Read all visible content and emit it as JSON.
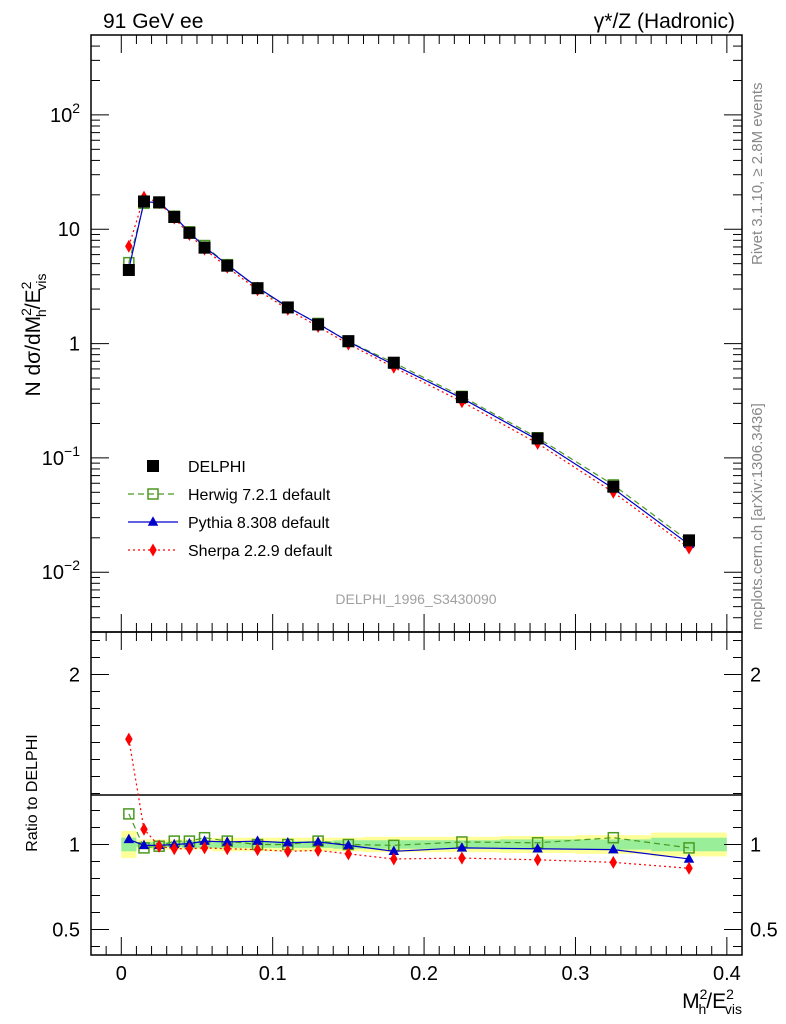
{
  "header": {
    "left": "91 GeV ee",
    "right": "γ*/Z (Hadronic)"
  },
  "side_text": {
    "rivet": "Rivet 3.1.10, ≥ 2.8M events",
    "mcplots": "mcplots.cern.ch [arXiv:1306.3436]"
  },
  "analysis_id": "DELPHI_1996_S3430090",
  "chart_data": [
    {
      "type": "scatter",
      "ylabel": "N dσ/dM²h/E²vis",
      "ylabel_parts": {
        "main": "N dσ/dM",
        "sup": "2",
        "sub": "h",
        "slash": "/E",
        "sup2": "2",
        "sub2": "vis"
      },
      "yscale": "log",
      "ylim": [
        0.003,
        500
      ],
      "xlim": [
        -0.02,
        0.41
      ],
      "y_ticks": [
        {
          "v": 0.01,
          "base": "10",
          "exp": "−2"
        },
        {
          "v": 0.1,
          "base": "10",
          "exp": "−1"
        },
        {
          "v": 1,
          "base": "1",
          "exp": ""
        },
        {
          "v": 10,
          "base": "10",
          "exp": ""
        },
        {
          "v": 100,
          "base": "10",
          "exp": "2"
        }
      ],
      "legend_position": "middle-left",
      "x": [
        0.005,
        0.015,
        0.025,
        0.035,
        0.045,
        0.055,
        0.07,
        0.09,
        0.11,
        0.13,
        0.15,
        0.18,
        0.225,
        0.275,
        0.325,
        0.375
      ],
      "series": [
        {
          "name": "DELPHI",
          "color": "#000000",
          "marker": "square-filled",
          "line": "none",
          "values": [
            4.4,
            17.5,
            17.2,
            12.8,
            9.3,
            6.9,
            4.8,
            3.05,
            2.07,
            1.47,
            1.05,
            0.68,
            0.34,
            0.148,
            0.056,
            0.019
          ]
        },
        {
          "name": "Herwig 7.2.1 default",
          "color": "#4a9a1f",
          "marker": "square-open",
          "line": "dashed",
          "values": [
            5.1,
            16.9,
            17.0,
            13.0,
            9.5,
            7.2,
            4.9,
            3.05,
            2.07,
            1.5,
            1.04,
            0.68,
            0.345,
            0.15,
            0.058,
            0.0186
          ]
        },
        {
          "name": "Pythia 8.308 default",
          "color": "#0000cc",
          "marker": "triangle",
          "line": "solid",
          "values": [
            4.5,
            17.3,
            17.2,
            13.0,
            9.4,
            7.0,
            4.9,
            3.1,
            2.09,
            1.49,
            1.04,
            0.65,
            0.333,
            0.144,
            0.054,
            0.0175
          ]
        },
        {
          "name": "Sherpa 2.2.9 default",
          "color": "#ff0000",
          "marker": "diamond",
          "line": "dotted",
          "values": [
            7.1,
            19.1,
            17.1,
            12.5,
            9.0,
            6.7,
            4.65,
            2.95,
            1.99,
            1.41,
            0.99,
            0.62,
            0.31,
            0.134,
            0.05,
            0.0163
          ]
        }
      ]
    },
    {
      "type": "line",
      "xlabel": "M²h/E²vis",
      "xlabel_parts": {
        "main": "M",
        "sup": "2",
        "sub": "h",
        "slash": "/E",
        "sup2": "2",
        "sub2": "vis"
      },
      "ylabel": "Ratio to DELPHI",
      "ylim": [
        0.35,
        2.25
      ],
      "xlim": [
        -0.02,
        0.41
      ],
      "x_ticks": [
        {
          "v": 0,
          "label": "0"
        },
        {
          "v": 0.1,
          "label": "0.1"
        },
        {
          "v": 0.2,
          "label": "0.2"
        },
        {
          "v": 0.3,
          "label": "0.3"
        },
        {
          "v": 0.4,
          "label": "0.4"
        }
      ],
      "y_ticks": [
        {
          "v": 0.5,
          "label": "0.5"
        },
        {
          "v": 1,
          "label": "1"
        },
        {
          "v": 2,
          "label": "2"
        }
      ],
      "bands": {
        "edges": [
          0.0,
          0.01,
          0.02,
          0.03,
          0.04,
          0.05,
          0.06,
          0.08,
          0.1,
          0.12,
          0.14,
          0.16,
          0.2,
          0.25,
          0.3,
          0.35,
          0.4
        ],
        "outer_color": "#ffff99",
        "inner_color": "#99ee99",
        "outer": [
          [
            0.92,
            1.08
          ],
          [
            0.97,
            1.03
          ],
          [
            0.97,
            1.03
          ],
          [
            0.97,
            1.03
          ],
          [
            0.97,
            1.03
          ],
          [
            0.97,
            1.03
          ],
          [
            0.96,
            1.04
          ],
          [
            0.96,
            1.04
          ],
          [
            0.96,
            1.04
          ],
          [
            0.96,
            1.04
          ],
          [
            0.96,
            1.04
          ],
          [
            0.955,
            1.045
          ],
          [
            0.955,
            1.045
          ],
          [
            0.95,
            1.05
          ],
          [
            0.945,
            1.055
          ],
          [
            0.93,
            1.07
          ]
        ],
        "inner": [
          [
            0.96,
            1.04
          ],
          [
            0.985,
            1.015
          ],
          [
            0.985,
            1.015
          ],
          [
            0.985,
            1.015
          ],
          [
            0.98,
            1.02
          ],
          [
            0.98,
            1.02
          ],
          [
            0.98,
            1.02
          ],
          [
            0.98,
            1.02
          ],
          [
            0.98,
            1.02
          ],
          [
            0.98,
            1.02
          ],
          [
            0.975,
            1.025
          ],
          [
            0.975,
            1.025
          ],
          [
            0.975,
            1.025
          ],
          [
            0.97,
            1.03
          ],
          [
            0.97,
            1.03
          ],
          [
            0.96,
            1.04
          ]
        ]
      },
      "x": [
        0.005,
        0.015,
        0.025,
        0.035,
        0.045,
        0.055,
        0.07,
        0.09,
        0.11,
        0.13,
        0.15,
        0.18,
        0.225,
        0.275,
        0.325,
        0.375
      ],
      "series": [
        {
          "name": "Herwig 7.2.1 default",
          "color": "#4a9a1f",
          "marker": "square-open",
          "line": "dashed",
          "values": [
            1.18,
            0.98,
            0.99,
            1.02,
            1.02,
            1.04,
            1.02,
            1.0,
            1.0,
            1.02,
            1.0,
            0.995,
            1.015,
            1.01,
            1.04,
            0.98
          ]
        },
        {
          "name": "Pythia 8.308 default",
          "color": "#0000cc",
          "marker": "triangle",
          "line": "solid",
          "values": [
            1.03,
            0.995,
            0.995,
            1.0,
            1.005,
            1.02,
            1.015,
            1.02,
            1.01,
            1.015,
            0.995,
            0.96,
            0.98,
            0.975,
            0.97,
            0.915
          ]
        },
        {
          "name": "Sherpa 2.2.9 default",
          "color": "#ff0000",
          "marker": "diamond",
          "line": "dotted",
          "values": [
            1.62,
            1.09,
            0.99,
            0.975,
            0.975,
            0.98,
            0.975,
            0.97,
            0.96,
            0.965,
            0.945,
            0.915,
            0.92,
            0.91,
            0.895,
            0.86
          ]
        }
      ]
    }
  ]
}
